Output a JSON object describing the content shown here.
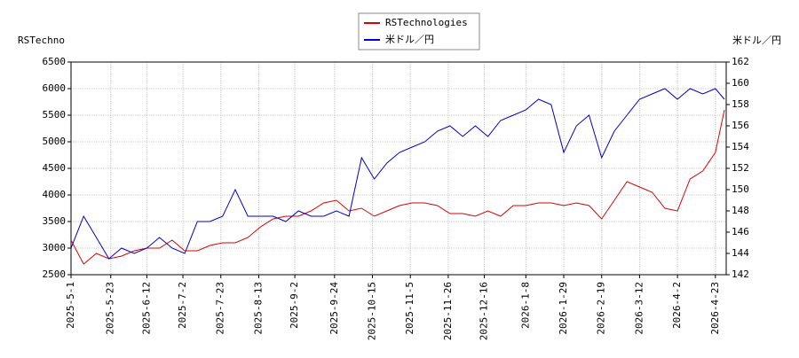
{
  "chart_data": {
    "type": "line",
    "y_axis_label": "RSTechno",
    "y2_axis_label": "米ドル／円",
    "x": [
      "2025-5-1",
      "2025-5-8",
      "2025-5-15",
      "2025-5-22",
      "2025-5-29",
      "2025-6-5",
      "2025-6-12",
      "2025-6-19",
      "2025-6-26",
      "2025-7-3",
      "2025-7-10",
      "2025-7-17",
      "2025-7-24",
      "2025-7-31",
      "2025-8-7",
      "2025-8-14",
      "2025-8-21",
      "2025-8-28",
      "2025-9-4",
      "2025-9-11",
      "2025-9-18",
      "2025-9-25",
      "2025-10-2",
      "2025-10-9",
      "2025-10-16",
      "2025-10-23",
      "2025-10-30",
      "2025-11-6",
      "2025-11-13",
      "2025-11-20",
      "2025-11-27",
      "2025-12-4",
      "2025-12-11",
      "2025-12-18",
      "2025-12-25",
      "2026-1-1",
      "2026-1-8",
      "2026-1-15",
      "2026-1-22",
      "2026-1-29",
      "2026-2-5",
      "2026-2-12",
      "2026-2-19",
      "2026-2-26",
      "2026-3-5",
      "2026-3-12",
      "2026-3-19",
      "2026-3-26",
      "2026-4-2",
      "2026-4-9",
      "2026-4-16",
      "2026-4-23",
      "2026-4-28"
    ],
    "series": [
      {
        "name": "RSTechnologies",
        "color": "#dd0000",
        "axis": "y",
        "values": [
          3150,
          2700,
          2900,
          2800,
          2850,
          2950,
          3000,
          3000,
          3150,
          2950,
          2950,
          3050,
          3100,
          3100,
          3200,
          3400,
          3550,
          3600,
          3600,
          3700,
          3850,
          3900,
          3700,
          3750,
          3600,
          3700,
          3800,
          3850,
          3850,
          3800,
          3650,
          3650,
          3600,
          3700,
          3600,
          3800,
          3800,
          3850,
          3850,
          3800,
          3850,
          3800,
          3550,
          3900,
          4250,
          4150,
          4050,
          3750,
          3700,
          4300,
          4450,
          4800,
          5600
        ]
      },
      {
        "name": "米ドル／円",
        "color": "#0000cc",
        "axis": "y2",
        "values": [
          144.5,
          147.5,
          145.5,
          143.5,
          144.5,
          144,
          144.5,
          145.5,
          144.5,
          144,
          147,
          147,
          147.5,
          150,
          147.5,
          147.5,
          147.5,
          147,
          148,
          147.5,
          147.5,
          148,
          147.5,
          153,
          151,
          152.5,
          153.5,
          154,
          154.5,
          155.5,
          156,
          155,
          156,
          155,
          156.5,
          157,
          157.5,
          158.5,
          158,
          153.5,
          156,
          157,
          153,
          155.5,
          157,
          158.5,
          159,
          159.5,
          158.5,
          159.5,
          159,
          159.5,
          158.5
        ]
      }
    ],
    "xlim": [
      "2025-5-1",
      "2026-4-29"
    ],
    "xticks": [
      "2025-5-1",
      "2025-5-23",
      "2025-6-12",
      "2025-7-2",
      "2025-7-23",
      "2025-8-13",
      "2025-9-2",
      "2025-9-24",
      "2025-10-15",
      "2025-11-5",
      "2025-11-26",
      "2025-12-16",
      "2026-1-8",
      "2026-1-29",
      "2026-2-19",
      "2026-3-12",
      "2026-4-2",
      "2026-4-23"
    ],
    "ylim": [
      2500,
      6500
    ],
    "yticks": [
      2500,
      3000,
      3500,
      4000,
      4500,
      5000,
      5500,
      6000,
      6500
    ],
    "y2lim": [
      142,
      162
    ],
    "y2ticks": [
      142,
      144,
      146,
      148,
      150,
      152,
      154,
      156,
      158,
      160,
      162
    ],
    "grid": true
  }
}
